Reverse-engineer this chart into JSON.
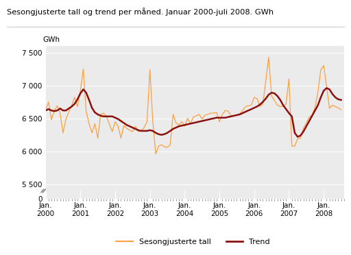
{
  "title": "Sesongjusterte tall og trend per måned. Januar 2000-juli 2008. GWh",
  "ylabel": "GWh",
  "background_color": "#ffffff",
  "plot_bg_color": "#ebebeb",
  "grid_color": "#ffffff",
  "orange_color": "#FFA040",
  "trend_color": "#8B1010",
  "legend_labels": [
    "Sesongjusterte tall",
    "Trend"
  ],
  "ylim_main": [
    5400,
    7600
  ],
  "ylim_break": [
    0,
    200
  ],
  "yticks_main": [
    5500,
    6000,
    6500,
    7000,
    7500
  ],
  "ytick_labels_main": [
    "5 500",
    "6 000",
    "6 500",
    "7 000",
    "7 500"
  ],
  "sesongjusterte": [
    6620,
    6750,
    6480,
    6620,
    6690,
    6580,
    6280,
    6490,
    6600,
    6700,
    6820,
    6680,
    6920,
    7250,
    6600,
    6420,
    6280,
    6420,
    6200,
    6560,
    6580,
    6530,
    6410,
    6300,
    6450,
    6380,
    6200,
    6390,
    6350,
    6320,
    6300,
    6380,
    6300,
    6310,
    6360,
    6450,
    7240,
    6450,
    5960,
    6080,
    6100,
    6070,
    6060,
    6100,
    6560,
    6430,
    6400,
    6450,
    6380,
    6500,
    6420,
    6520,
    6540,
    6560,
    6490,
    6550,
    6560,
    6580,
    6580,
    6590,
    6450,
    6560,
    6620,
    6610,
    6540,
    6540,
    6550,
    6570,
    6620,
    6680,
    6690,
    6700,
    6820,
    6800,
    6680,
    6720,
    7070,
    7430,
    6840,
    6770,
    6700,
    6680,
    6680,
    6720,
    7100,
    6080,
    6080,
    6190,
    6200,
    6350,
    6430,
    6520,
    6550,
    6670,
    6900,
    7240,
    7300,
    6980,
    6650,
    6700,
    6680,
    6660,
    6630
  ],
  "trend": [
    6620,
    6640,
    6620,
    6610,
    6620,
    6650,
    6620,
    6620,
    6650,
    6680,
    6720,
    6790,
    6880,
    6940,
    6890,
    6780,
    6660,
    6590,
    6560,
    6540,
    6530,
    6530,
    6530,
    6530,
    6510,
    6490,
    6460,
    6430,
    6400,
    6380,
    6360,
    6340,
    6320,
    6310,
    6310,
    6310,
    6320,
    6310,
    6280,
    6260,
    6250,
    6260,
    6280,
    6310,
    6340,
    6360,
    6380,
    6390,
    6400,
    6410,
    6420,
    6430,
    6440,
    6450,
    6460,
    6470,
    6480,
    6490,
    6500,
    6510,
    6510,
    6510,
    6510,
    6520,
    6530,
    6540,
    6550,
    6560,
    6580,
    6600,
    6620,
    6640,
    6660,
    6680,
    6710,
    6750,
    6800,
    6860,
    6890,
    6880,
    6840,
    6780,
    6700,
    6640,
    6580,
    6530,
    6280,
    6220,
    6240,
    6300,
    6380,
    6460,
    6540,
    6620,
    6700,
    6820,
    6920,
    6960,
    6940,
    6870,
    6820,
    6790,
    6780
  ]
}
